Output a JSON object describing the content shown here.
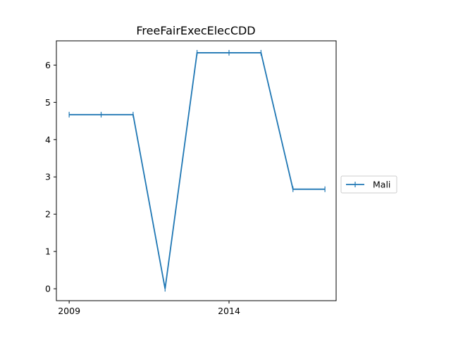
{
  "chart_data": {
    "type": "line",
    "title": "FreeFairExecElecCDD",
    "xlabel": "",
    "ylabel": "",
    "x": [
      2009,
      2010,
      2011,
      2012,
      2013,
      2014,
      2015,
      2016,
      2017
    ],
    "xticks": [
      2009,
      2014
    ],
    "yticks": [
      0,
      1,
      2,
      3,
      4,
      5,
      6
    ],
    "xlim": [
      2008.6,
      2017.35
    ],
    "ylim": [
      -0.32,
      6.65
    ],
    "grid": false,
    "legend_position": "right",
    "series": [
      {
        "name": "Mali",
        "color": "#1f77b4",
        "marker": "vertical-line",
        "values": [
          4.67,
          4.67,
          4.67,
          0.0,
          6.33,
          6.33,
          6.33,
          2.67,
          2.67
        ]
      }
    ]
  }
}
